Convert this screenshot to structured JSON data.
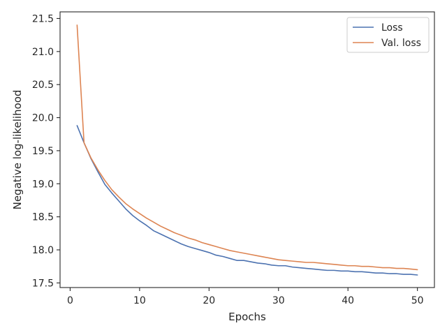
{
  "chart_data": {
    "type": "line",
    "title": "",
    "xlabel": "Epochs",
    "ylabel": "Negative log-likelihood",
    "xlim": [
      -1.45,
      52.45
    ],
    "ylim": [
      17.43,
      21.6
    ],
    "xticks": [
      0,
      10,
      20,
      30,
      40,
      50
    ],
    "xtick_labels": [
      "0",
      "10",
      "20",
      "30",
      "40",
      "50"
    ],
    "yticks": [
      17.5,
      18.0,
      18.5,
      19.0,
      19.5,
      20.0,
      20.5,
      21.0,
      21.5
    ],
    "ytick_labels": [
      "17.5",
      "18.0",
      "18.5",
      "19.0",
      "19.5",
      "20.0",
      "20.5",
      "21.0",
      "21.5"
    ],
    "grid": false,
    "legend_position": "top-right",
    "x": [
      1,
      2,
      3,
      4,
      5,
      6,
      7,
      8,
      9,
      10,
      11,
      12,
      13,
      14,
      15,
      16,
      17,
      18,
      19,
      20,
      21,
      22,
      23,
      24,
      25,
      26,
      27,
      28,
      29,
      30,
      31,
      32,
      33,
      34,
      35,
      36,
      37,
      38,
      39,
      40,
      41,
      42,
      43,
      44,
      45,
      46,
      47,
      48,
      49,
      50
    ],
    "series": [
      {
        "name": "Loss",
        "color": "#4c72b0",
        "values": [
          19.88,
          19.62,
          19.38,
          19.18,
          18.99,
          18.86,
          18.74,
          18.62,
          18.52,
          18.44,
          18.37,
          18.29,
          18.24,
          18.19,
          18.14,
          18.09,
          18.05,
          18.02,
          17.99,
          17.96,
          17.92,
          17.9,
          17.87,
          17.84,
          17.84,
          17.82,
          17.8,
          17.79,
          17.77,
          17.76,
          17.76,
          17.74,
          17.73,
          17.72,
          17.71,
          17.7,
          17.69,
          17.69,
          17.68,
          17.68,
          17.67,
          17.67,
          17.66,
          17.65,
          17.65,
          17.64,
          17.64,
          17.63,
          17.63,
          17.62
        ]
      },
      {
        "name": "Val. loss",
        "color": "#dd8452",
        "values": [
          21.4,
          19.62,
          19.39,
          19.21,
          19.05,
          18.91,
          18.8,
          18.7,
          18.62,
          18.55,
          18.48,
          18.42,
          18.36,
          18.31,
          18.26,
          18.22,
          18.18,
          18.15,
          18.11,
          18.08,
          18.05,
          18.02,
          17.99,
          17.97,
          17.95,
          17.93,
          17.91,
          17.89,
          17.87,
          17.85,
          17.84,
          17.83,
          17.82,
          17.81,
          17.81,
          17.8,
          17.79,
          17.78,
          17.77,
          17.76,
          17.76,
          17.75,
          17.75,
          17.74,
          17.73,
          17.73,
          17.72,
          17.72,
          17.71,
          17.7
        ]
      }
    ]
  }
}
